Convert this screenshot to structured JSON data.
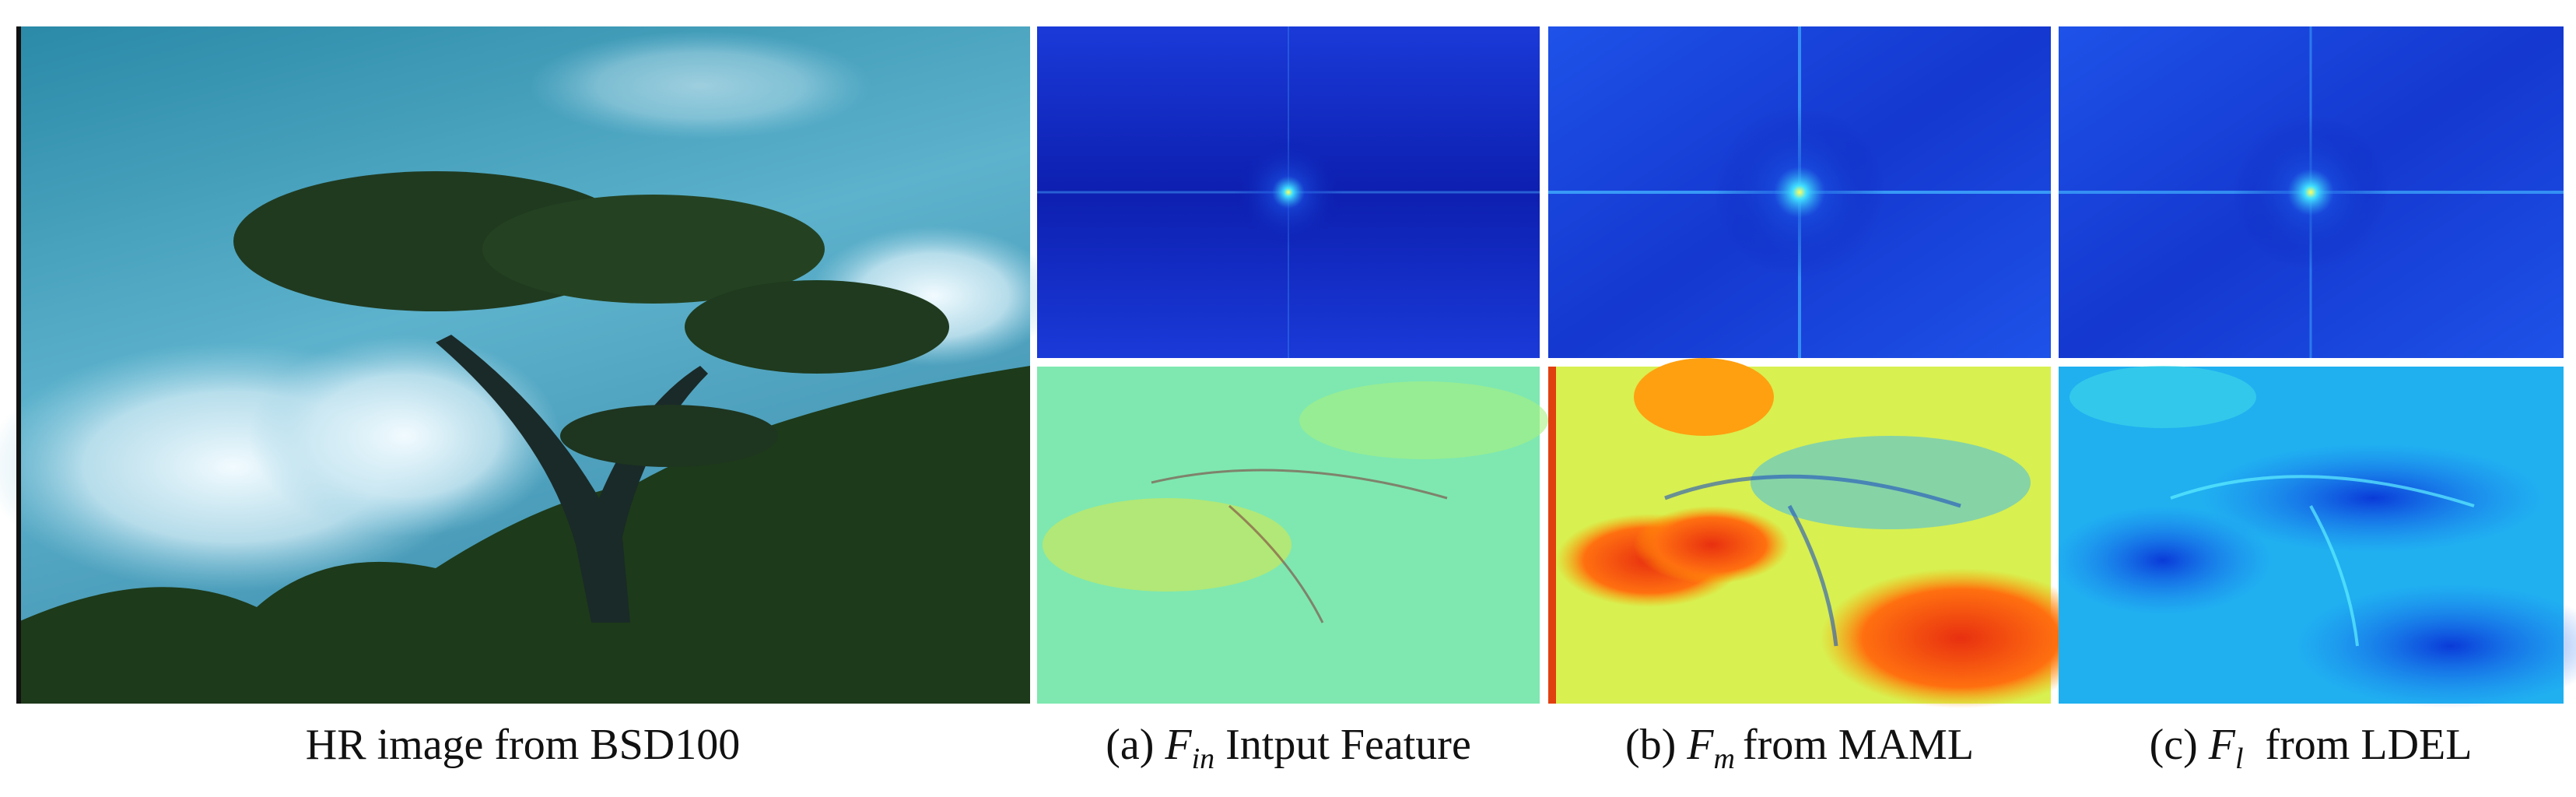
{
  "figure": {
    "hr_caption": "HR image from BSD100",
    "panels": [
      {
        "label": "(a)",
        "symbol": "F",
        "subscript": "in",
        "text": "Intput Feature"
      },
      {
        "label": "(b)",
        "symbol": "F",
        "subscript": "m",
        "text": "from MAML"
      },
      {
        "label": "(c)",
        "symbol": "F",
        "subscript": "l",
        "text": "from LDEL"
      }
    ]
  }
}
